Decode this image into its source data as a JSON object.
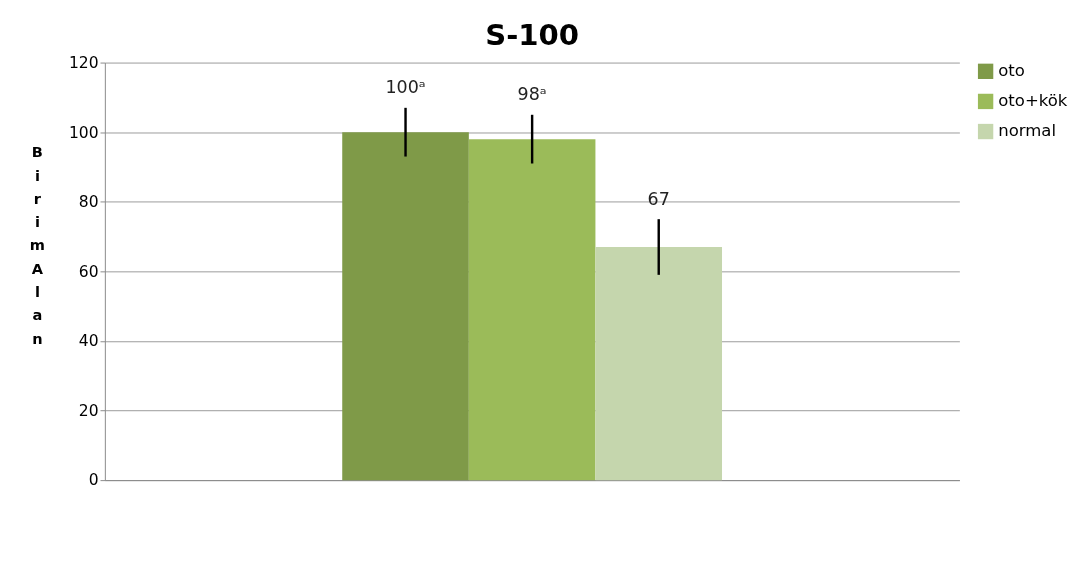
{
  "chart_data": {
    "type": "bar",
    "title": "S-100",
    "ylabel": "Birim Alan",
    "categories": [
      null
    ],
    "series": [
      {
        "name": "oto",
        "color": "#7f9a48",
        "values": [
          100
        ],
        "errors": [
          7
        ],
        "value_labels": [
          "100ᵃ"
        ]
      },
      {
        "name": "oto+kök",
        "color": "#9bbb59",
        "values": [
          98
        ],
        "errors": [
          7
        ],
        "value_labels": [
          "98ᵃ"
        ]
      },
      {
        "name": "normal",
        "color": "#c5d6ad",
        "values": [
          67
        ],
        "errors": [
          8
        ],
        "value_labels": [
          "67"
        ]
      }
    ],
    "ylim": [
      0,
      120
    ],
    "yticks": [
      0,
      20,
      40,
      60,
      80,
      100,
      120
    ],
    "grid": "y",
    "legend": "right"
  }
}
